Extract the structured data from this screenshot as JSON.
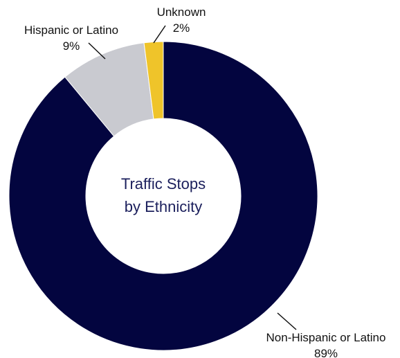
{
  "chart_data": {
    "type": "pie",
    "donut": true,
    "center_title": [
      "Traffic Stops",
      "by Ethnicity"
    ],
    "slices": [
      {
        "name": "Non-Hispanic or Latino",
        "value": 89,
        "value_label": "89%",
        "color": "#03053f"
      },
      {
        "name": "Hispanic or Latino",
        "value": 9,
        "value_label": "9%",
        "color": "#c9cad0"
      },
      {
        "name": "Unknown",
        "value": 2,
        "value_label": "2%",
        "color": "#efc42a"
      }
    ]
  }
}
